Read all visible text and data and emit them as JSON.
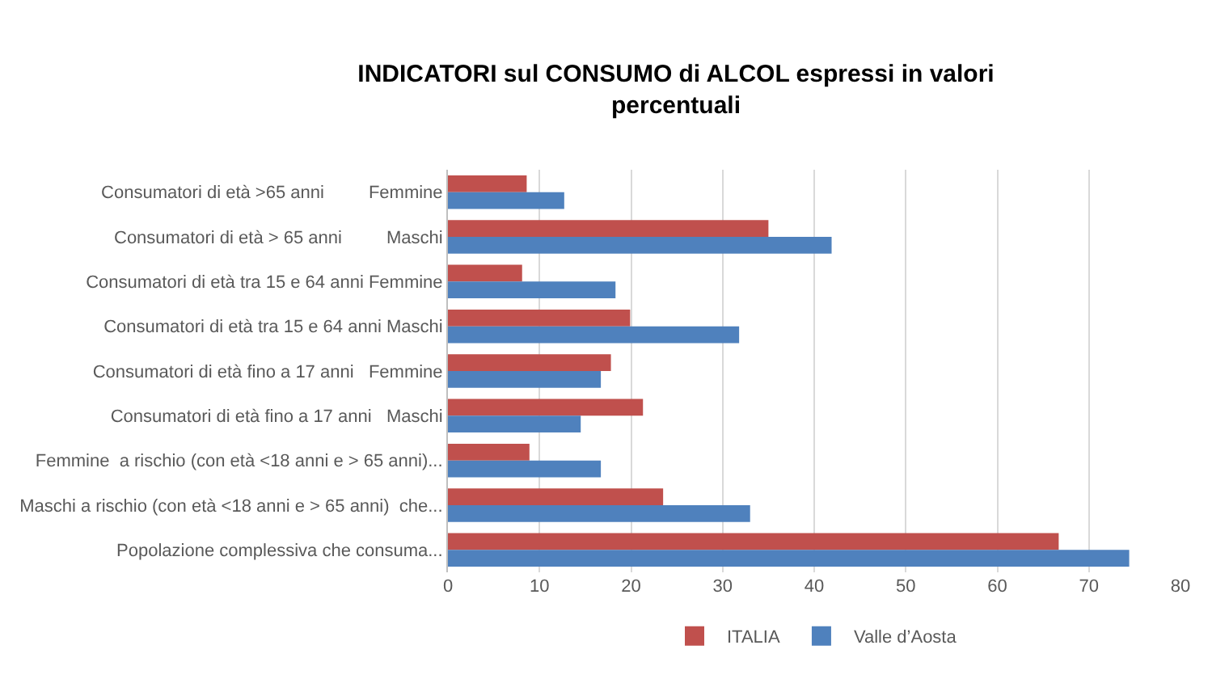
{
  "chart_data": {
    "type": "bar",
    "orientation": "horizontal",
    "title": "INDICATORI sul CONSUMO di ALCOL espressi in valori percentuali",
    "categories": [
      "Consumatori di età >65 anni         Femmine",
      "Consumatori di età > 65 anni         Maschi",
      "Consumatori di età tra 15 e 64 anni Femmine",
      "Consumatori di età tra 15 e 64 anni Maschi",
      "Consumatori di età fino a 17 anni   Femmine",
      "Consumatori di età fino a 17 anni   Maschi",
      "Femmine  a rischio (con età <18 anni e > 65 anni)...",
      "Maschi a rischio (con età <18 anni e > 65 anni)  che...",
      "Popolazione complessiva che consuma..."
    ],
    "series": [
      {
        "name": "ITALIA",
        "color": "#c0504d",
        "values": [
          8.6,
          35.0,
          8.1,
          19.9,
          17.8,
          21.3,
          8.9,
          23.5,
          66.7
        ]
      },
      {
        "name": "Valle d’Aosta",
        "color": "#4f81bd",
        "values": [
          12.7,
          41.9,
          18.3,
          31.8,
          16.7,
          14.5,
          16.7,
          33.0,
          74.4
        ]
      }
    ],
    "xlim": [
      0,
      80
    ],
    "xticks": [
      0,
      10,
      20,
      30,
      40,
      50,
      60,
      70,
      80
    ],
    "grid": "x",
    "legend": "bottom"
  }
}
